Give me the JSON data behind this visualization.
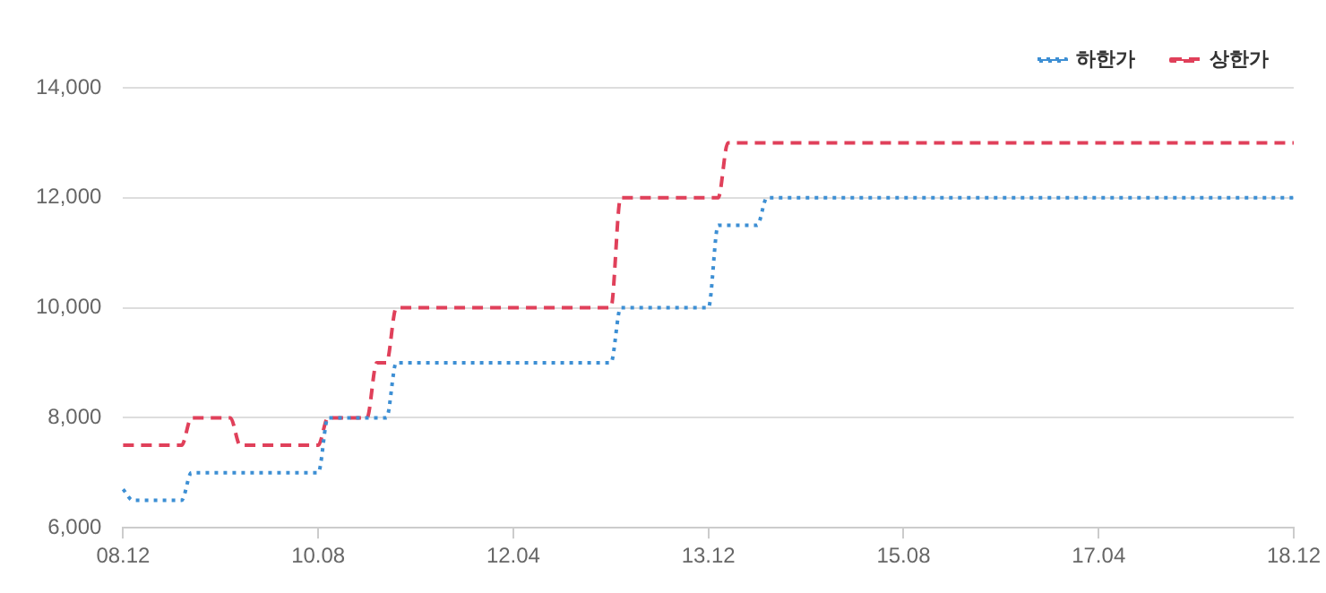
{
  "chart_data": {
    "type": "line",
    "categories": [
      "08.12",
      null,
      null,
      null,
      null,
      null,
      null,
      null,
      null,
      null,
      null,
      null,
      null,
      null,
      null,
      null,
      null,
      null,
      null,
      null,
      "10.08",
      null,
      null,
      null,
      null,
      null,
      null,
      null,
      null,
      null,
      null,
      null,
      null,
      null,
      null,
      null,
      null,
      null,
      null,
      null,
      "12.04",
      null,
      null,
      null,
      null,
      null,
      null,
      null,
      null,
      null,
      null,
      null,
      null,
      null,
      null,
      null,
      null,
      null,
      null,
      null,
      "13.12",
      null,
      null,
      null,
      null,
      null,
      null,
      null,
      null,
      null,
      null,
      null,
      null,
      null,
      null,
      null,
      null,
      null,
      null,
      null,
      "15.08",
      null,
      null,
      null,
      null,
      null,
      null,
      null,
      null,
      null,
      null,
      null,
      null,
      null,
      null,
      null,
      null,
      null,
      null,
      null,
      "17.04",
      null,
      null,
      null,
      null,
      null,
      null,
      null,
      null,
      null,
      null,
      null,
      null,
      null,
      null,
      null,
      null,
      null,
      null,
      null,
      "18.12"
    ],
    "series": [
      {
        "name": "하한가",
        "color": "#3d8fd4",
        "line_style": "dotted",
        "values": [
          6700,
          6500,
          6500,
          6500,
          6500,
          6500,
          6500,
          7000,
          7000,
          7000,
          7000,
          7000,
          7000,
          7000,
          7000,
          7000,
          7000,
          7000,
          7000,
          7000,
          7000,
          8000,
          8000,
          8000,
          8000,
          8000,
          8000,
          8000,
          9000,
          9000,
          9000,
          9000,
          9000,
          9000,
          9000,
          9000,
          9000,
          9000,
          9000,
          9000,
          9000,
          9000,
          9000,
          9000,
          9000,
          9000,
          9000,
          9000,
          9000,
          9000,
          9000,
          10000,
          10000,
          10000,
          10000,
          10000,
          10000,
          10000,
          10000,
          10000,
          10000,
          11500,
          11500,
          11500,
          11500,
          11500,
          12000,
          12000,
          12000,
          12000,
          12000,
          12000,
          12000,
          12000,
          12000,
          12000,
          12000,
          12000,
          12000,
          12000,
          12000,
          12000,
          12000,
          12000,
          12000,
          12000,
          12000,
          12000,
          12000,
          12000,
          12000,
          12000,
          12000,
          12000,
          12000,
          12000,
          12000,
          12000,
          12000,
          12000,
          12000,
          12000,
          12000,
          12000,
          12000,
          12000,
          12000,
          12000,
          12000,
          12000,
          12000,
          12000,
          12000,
          12000,
          12000,
          12000,
          12000,
          12000,
          12000,
          12000,
          12000
        ]
      },
      {
        "name": "상한가",
        "color": "#e0405a",
        "line_style": "dashed",
        "values": [
          7500,
          7500,
          7500,
          7500,
          7500,
          7500,
          7500,
          8000,
          8000,
          8000,
          8000,
          8000,
          7500,
          7500,
          7500,
          7500,
          7500,
          7500,
          7500,
          7500,
          7500,
          8000,
          8000,
          8000,
          8000,
          8000,
          9000,
          9000,
          10000,
          10000,
          10000,
          10000,
          10000,
          10000,
          10000,
          10000,
          10000,
          10000,
          10000,
          10000,
          10000,
          10000,
          10000,
          10000,
          10000,
          10000,
          10000,
          10000,
          10000,
          10000,
          10000,
          12000,
          12000,
          12000,
          12000,
          12000,
          12000,
          12000,
          12000,
          12000,
          12000,
          12000,
          13000,
          13000,
          13000,
          13000,
          13000,
          13000,
          13000,
          13000,
          13000,
          13000,
          13000,
          13000,
          13000,
          13000,
          13000,
          13000,
          13000,
          13000,
          13000,
          13000,
          13000,
          13000,
          13000,
          13000,
          13000,
          13000,
          13000,
          13000,
          13000,
          13000,
          13000,
          13000,
          13000,
          13000,
          13000,
          13000,
          13000,
          13000,
          13000,
          13000,
          13000,
          13000,
          13000,
          13000,
          13000,
          13000,
          13000,
          13000,
          13000,
          13000,
          13000,
          13000,
          13000,
          13000,
          13000,
          13000,
          13000,
          13000,
          13000
        ]
      }
    ],
    "ylim": [
      6000,
      14000
    ],
    "yticks": [
      {
        "value": 6000,
        "label": "6,000"
      },
      {
        "value": 8000,
        "label": "8,000"
      },
      {
        "value": 10000,
        "label": "10,000"
      },
      {
        "value": 12000,
        "label": "12,000"
      },
      {
        "value": 14000,
        "label": "14,000"
      }
    ],
    "grid": "y",
    "legend": "top right",
    "marker": "none"
  }
}
